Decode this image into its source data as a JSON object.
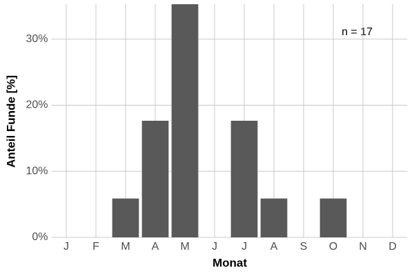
{
  "chart_data": {
    "type": "bar",
    "x_label": "Monat",
    "y_label": "Anteil Funde [%]",
    "annotation": "n = 17",
    "categories": [
      "J",
      "F",
      "M",
      "A",
      "M",
      "J",
      "J",
      "A",
      "S",
      "O",
      "N",
      "D"
    ],
    "values": [
      0,
      0,
      5.88,
      17.65,
      35.29,
      0,
      17.65,
      5.88,
      0,
      5.88,
      0,
      0
    ],
    "color": "#595959",
    "ylim": [
      0,
      35.3
    ],
    "yticks": [
      {
        "value": 0,
        "label": "0%"
      },
      {
        "value": 10,
        "label": "10%"
      },
      {
        "value": 20,
        "label": "20%"
      },
      {
        "value": 30,
        "label": "30%"
      }
    ],
    "grid": true
  }
}
